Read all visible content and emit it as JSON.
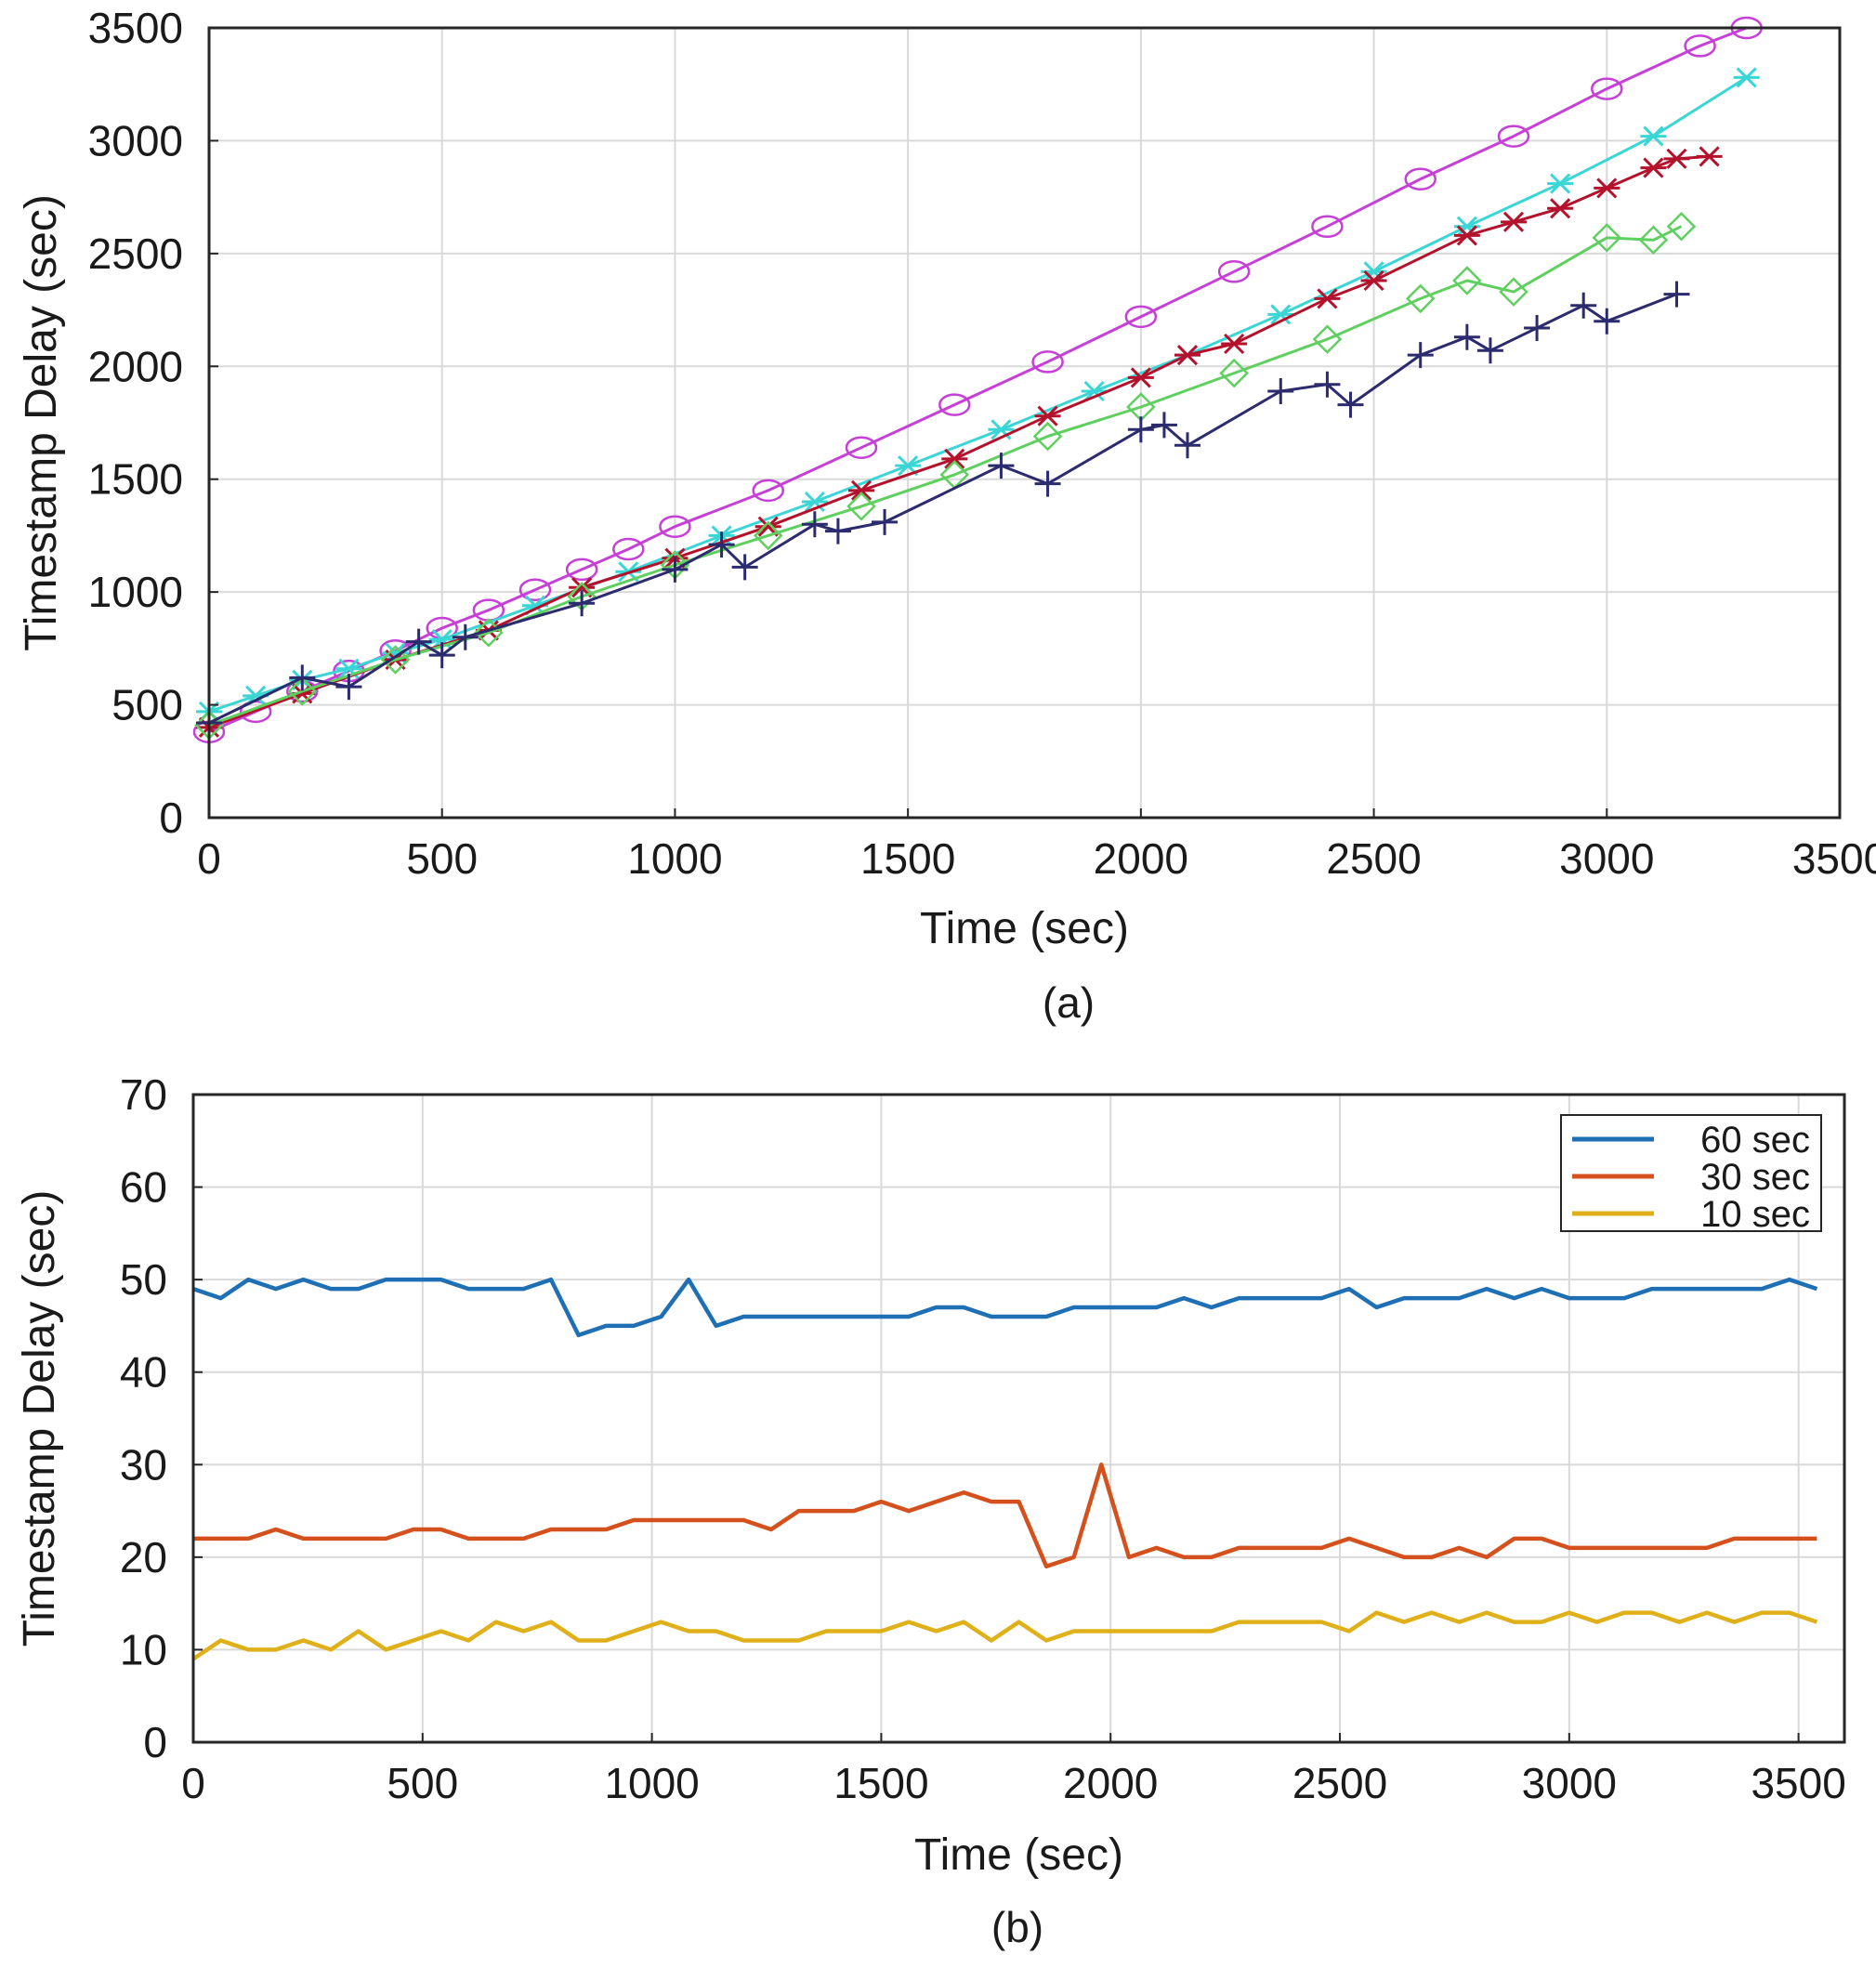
{
  "chart_data": [
    {
      "type": "line",
      "caption": "(a)",
      "title": "",
      "xlabel": "Time (sec)",
      "ylabel": "Timestamp Delay (sec)",
      "xlim": [
        0,
        3500
      ],
      "ylim": [
        0,
        3500
      ],
      "xticks": [
        0,
        500,
        1000,
        1500,
        2000,
        2500,
        3000,
        3500
      ],
      "yticks": [
        0,
        500,
        1000,
        1500,
        2000,
        2500,
        3000,
        3500
      ],
      "xtick_labels": [
        "0",
        "500",
        "1000",
        "1500",
        "2000",
        "2500",
        "3000",
        "3500"
      ],
      "ytick_labels": [
        "0",
        "500",
        "1000",
        "1500",
        "2000",
        "2500",
        "3000",
        "3500"
      ],
      "grid": true,
      "series": [
        {
          "name": "magenta circles",
          "color": "#c63fd6",
          "marker": "circle",
          "x": [
            0,
            100,
            200,
            300,
            400,
            500,
            600,
            700,
            800,
            900,
            1000,
            1200,
            1400,
            1600,
            1800,
            2000,
            2200,
            2400,
            2600,
            2800,
            3000,
            3200,
            3300
          ],
          "y": [
            380,
            470,
            560,
            650,
            740,
            840,
            920,
            1010,
            1100,
            1190,
            1290,
            1450,
            1640,
            1830,
            2020,
            2220,
            2420,
            2620,
            2830,
            3020,
            3230,
            3420,
            3500
          ]
        },
        {
          "name": "cyan asterisks",
          "color": "#3ad6d6",
          "marker": "star",
          "x": [
            0,
            100,
            200,
            300,
            400,
            500,
            700,
            900,
            1100,
            1300,
            1500,
            1700,
            1900,
            2100,
            2300,
            2500,
            2700,
            2900,
            3100,
            3300
          ],
          "y": [
            470,
            540,
            610,
            660,
            730,
            790,
            940,
            1090,
            1250,
            1400,
            1560,
            1720,
            1890,
            2050,
            2230,
            2420,
            2620,
            2810,
            3020,
            3280
          ]
        },
        {
          "name": "red stars",
          "color": "#b4122c",
          "marker": "star",
          "x": [
            0,
            200,
            400,
            600,
            800,
            1000,
            1200,
            1400,
            1600,
            1800,
            2000,
            2100,
            2200,
            2400,
            2500,
            2700,
            2800,
            2900,
            3000,
            3100,
            3150,
            3220
          ],
          "y": [
            400,
            550,
            700,
            830,
            1020,
            1150,
            1290,
            1450,
            1590,
            1780,
            1950,
            2050,
            2100,
            2300,
            2380,
            2580,
            2640,
            2700,
            2790,
            2880,
            2920,
            2930
          ]
        },
        {
          "name": "green diamonds",
          "color": "#5fd05f",
          "marker": "diamond",
          "x": [
            0,
            200,
            400,
            600,
            800,
            1000,
            1200,
            1400,
            1600,
            1800,
            2000,
            2200,
            2400,
            2600,
            2700,
            2800,
            3000,
            3100,
            3160
          ],
          "y": [
            410,
            560,
            700,
            820,
            980,
            1120,
            1250,
            1380,
            1520,
            1690,
            1820,
            1970,
            2120,
            2300,
            2380,
            2330,
            2570,
            2560,
            2620
          ]
        },
        {
          "name": "navy crosses",
          "color": "#2b2b6e",
          "marker": "plus",
          "x": [
            0,
            200,
            300,
            450,
            500,
            550,
            800,
            1000,
            1100,
            1150,
            1300,
            1350,
            1450,
            1700,
            1800,
            2000,
            2050,
            2100,
            2300,
            2400,
            2450,
            2600,
            2700,
            2750,
            2850,
            2950,
            3000,
            3150
          ],
          "y": [
            420,
            620,
            580,
            780,
            720,
            800,
            950,
            1100,
            1210,
            1110,
            1300,
            1270,
            1310,
            1560,
            1480,
            1720,
            1740,
            1650,
            1890,
            1920,
            1830,
            2050,
            2130,
            2070,
            2170,
            2270,
            2200,
            2320
          ]
        }
      ]
    },
    {
      "type": "line",
      "caption": "(b)",
      "title": "",
      "xlabel": "Time (sec)",
      "ylabel": "Timestamp Delay (sec)",
      "xlim": [
        0,
        3600
      ],
      "ylim": [
        0,
        70
      ],
      "xticks": [
        0,
        500,
        1000,
        1500,
        2000,
        2500,
        3000,
        3500
      ],
      "yticks": [
        0,
        10,
        20,
        30,
        40,
        50,
        60,
        70
      ],
      "xtick_labels": [
        "0",
        "500",
        "1000",
        "1500",
        "2000",
        "2500",
        "3000",
        "3500"
      ],
      "ytick_labels": [
        "0",
        "10",
        "20",
        "30",
        "40",
        "50",
        "60",
        "70"
      ],
      "grid": true,
      "legend_position": "top-right",
      "x": [
        0,
        60,
        120,
        180,
        240,
        300,
        360,
        420,
        480,
        540,
        600,
        660,
        720,
        780,
        840,
        900,
        960,
        1020,
        1080,
        1140,
        1200,
        1260,
        1320,
        1380,
        1440,
        1500,
        1560,
        1620,
        1680,
        1740,
        1800,
        1860,
        1920,
        1980,
        2040,
        2100,
        2160,
        2220,
        2280,
        2340,
        2400,
        2460,
        2520,
        2580,
        2640,
        2700,
        2760,
        2820,
        2880,
        2940,
        3000,
        3060,
        3120,
        3180,
        3240,
        3300,
        3360,
        3420,
        3480,
        3540
      ],
      "series": [
        {
          "name": "60 sec",
          "color": "#1f6fb4",
          "values": [
            49,
            48,
            50,
            49,
            50,
            49,
            49,
            50,
            50,
            50,
            49,
            49,
            49,
            50,
            44,
            45,
            45,
            46,
            50,
            45,
            46,
            46,
            46,
            46,
            46,
            46,
            46,
            47,
            47,
            46,
            46,
            46,
            47,
            47,
            47,
            47,
            48,
            47,
            48,
            48,
            48,
            48,
            49,
            47,
            48,
            48,
            48,
            49,
            48,
            49,
            48,
            48,
            48,
            49,
            49,
            49,
            49,
            49,
            50,
            49
          ]
        },
        {
          "name": "30 sec",
          "color": "#d4501c",
          "values": [
            22,
            22,
            22,
            23,
            22,
            22,
            22,
            22,
            23,
            23,
            22,
            22,
            22,
            23,
            23,
            23,
            24,
            24,
            24,
            24,
            24,
            23,
            25,
            25,
            25,
            26,
            25,
            26,
            27,
            26,
            26,
            19,
            20,
            30,
            20,
            21,
            20,
            20,
            21,
            21,
            21,
            21,
            22,
            21,
            20,
            20,
            21,
            20,
            22,
            22,
            21,
            21,
            21,
            21,
            21,
            21,
            22,
            22,
            22,
            22
          ]
        },
        {
          "name": "10 sec",
          "color": "#e0b01a",
          "values": [
            9,
            11,
            10,
            10,
            11,
            10,
            12,
            10,
            11,
            12,
            11,
            13,
            12,
            13,
            11,
            11,
            12,
            13,
            12,
            12,
            11,
            11,
            11,
            12,
            12,
            12,
            13,
            12,
            13,
            11,
            13,
            11,
            12,
            12,
            12,
            12,
            12,
            12,
            13,
            13,
            13,
            13,
            12,
            14,
            13,
            14,
            13,
            14,
            13,
            13,
            14,
            13,
            14,
            14,
            13,
            14,
            13,
            14,
            14,
            13
          ]
        }
      ]
    }
  ]
}
